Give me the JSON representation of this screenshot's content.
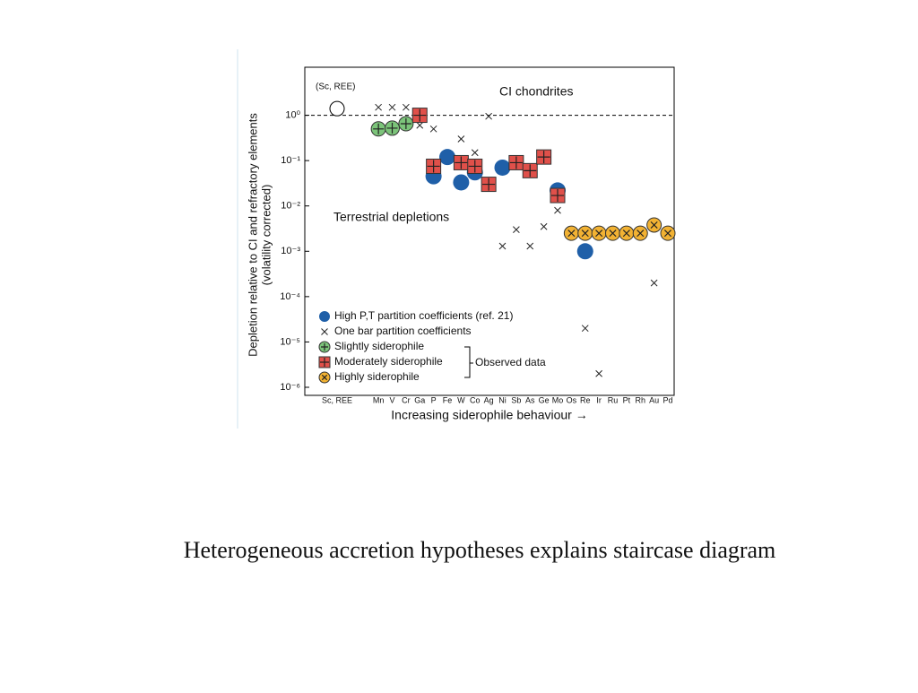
{
  "chart_data": {
    "type": "scatter",
    "y_label": [
      "Depletion relative to CI and refractory elements",
      "(volatility corrected)"
    ],
    "x_label": "Increasing siderophile behaviour →",
    "annotations": [
      "(Sc, REE)",
      "CI chondrites",
      "Terrestrial depletions",
      "Observed data"
    ],
    "log_y": true,
    "reference_line": 1,
    "categories": [
      "Sc, REE",
      null,
      null,
      "Mn",
      "V",
      "Cr",
      "Ga",
      "P",
      "Fe",
      "W",
      "Co",
      "Ag",
      "Ni",
      "Sb",
      "As",
      "Ge",
      "Mo",
      "Os",
      "Re",
      "Ir",
      "Ru",
      "Pt",
      "Rh",
      "Au",
      "Pd"
    ],
    "ylim": [
      1e-06,
      10
    ],
    "yticks": [
      {
        "value": 1,
        "label": "10⁰"
      },
      {
        "value": 0.1,
        "label": "10⁻¹"
      },
      {
        "value": 0.01,
        "label": "10⁻²"
      },
      {
        "value": 0.001,
        "label": "10⁻³"
      },
      {
        "value": 0.0001,
        "label": "10⁻⁴"
      },
      {
        "value": 1e-05,
        "label": "10⁻⁵"
      },
      {
        "value": 1e-06,
        "label": "10⁻⁶"
      }
    ],
    "series": [
      {
        "marker": "open-circle",
        "color": "#000000",
        "values": [
          1.4,
          null,
          null,
          null,
          null,
          null,
          null,
          null,
          null,
          null,
          null,
          null,
          null,
          null,
          null,
          null,
          null,
          null,
          null,
          null,
          null,
          null,
          null,
          null,
          null
        ]
      },
      {
        "name": "High P,T partition coefficients (ref. 21)",
        "marker": "circle",
        "color": "#1f5fa8",
        "values": [
          null,
          null,
          null,
          null,
          null,
          null,
          null,
          0.045,
          0.12,
          0.033,
          0.055,
          null,
          0.07,
          null,
          null,
          null,
          0.022,
          null,
          0.001,
          null,
          null,
          null,
          null,
          null,
          null
        ]
      },
      {
        "name": "One bar partition coefficients",
        "marker": "x",
        "color": "#333333",
        "values": [
          null,
          null,
          null,
          1.5,
          1.5,
          1.5,
          0.6,
          0.5,
          null,
          0.3,
          0.15,
          0.95,
          0.0013,
          0.003,
          0.0013,
          0.0035,
          0.008,
          null,
          2e-05,
          2e-06,
          null,
          null,
          null,
          0.0002,
          null
        ]
      },
      {
        "name": "Slightly siderophile",
        "marker": "circle-plus",
        "color": "#7cc47a",
        "values": [
          null,
          null,
          null,
          0.5,
          0.52,
          0.65,
          null,
          null,
          null,
          null,
          null,
          null,
          null,
          null,
          null,
          null,
          null,
          null,
          null,
          null,
          null,
          null,
          null,
          null,
          null
        ]
      },
      {
        "name": "Moderately siderophile",
        "marker": "square-plus",
        "color": "#e0504a",
        "values": [
          null,
          null,
          null,
          null,
          null,
          null,
          1.0,
          0.075,
          null,
          0.09,
          0.075,
          0.03,
          null,
          0.09,
          0.06,
          0.12,
          0.017,
          null,
          null,
          null,
          null,
          null,
          null,
          null,
          null
        ]
      },
      {
        "name": "Highly siderophile",
        "marker": "circle-x",
        "color": "#f2b233",
        "values": [
          null,
          null,
          null,
          null,
          null,
          null,
          null,
          null,
          null,
          null,
          null,
          null,
          null,
          null,
          null,
          null,
          null,
          0.0025,
          0.0025,
          0.0025,
          0.0025,
          0.0025,
          0.0025,
          0.0038,
          0.0025
        ]
      }
    ]
  },
  "caption": "Heterogeneous accretion hypotheses explains staircase diagram"
}
